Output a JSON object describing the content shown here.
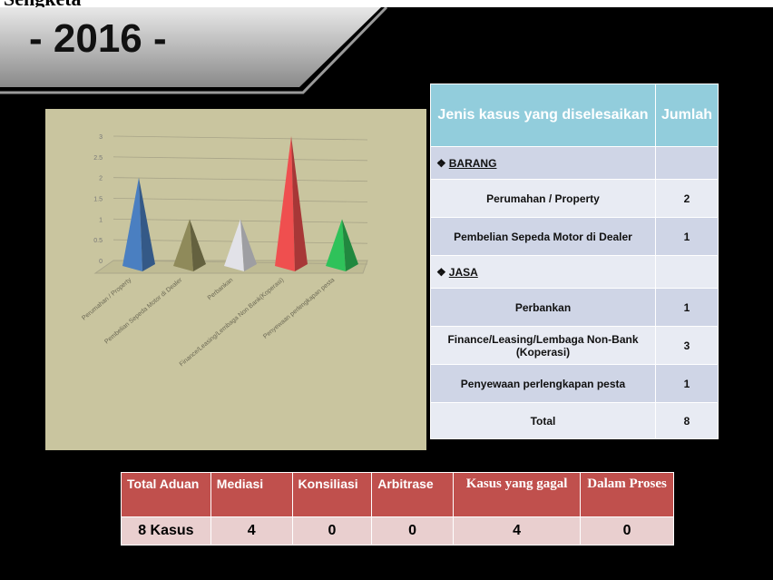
{
  "header": {
    "caption": "Sengketa",
    "year": "- 2016 -"
  },
  "chart_data": {
    "type": "pyramid",
    "categories": [
      "Perumahan / Property",
      "Pembelian Sepeda Motor di Dealer",
      "Perbankan",
      "Finance/Leasing/Lembaga Non Bank(Koperasi)",
      "Penyewaan perlengkapan pesta"
    ],
    "values": [
      2,
      1,
      1,
      3,
      1
    ],
    "colors": [
      "#4a7fc1",
      "#8f8a5a",
      "#e2e2e8",
      "#ef4f4f",
      "#2fc25a"
    ],
    "ylim": [
      0,
      3
    ],
    "yticks": [
      0,
      0.5,
      1,
      1.5,
      2,
      2.5,
      3
    ],
    "grid": true
  },
  "table": {
    "columns": [
      "Jenis kasus yang diselesaikan",
      "Jumlah"
    ],
    "sections": [
      {
        "name": "BARANG",
        "rows": [
          [
            "Perumahan / Property",
            2
          ],
          [
            "Pembelian Sepeda Motor di Dealer",
            1
          ]
        ]
      },
      {
        "name": "JASA",
        "rows": [
          [
            "Perbankan",
            1
          ],
          [
            "Finance/Leasing/Lembaga Non-Bank (Koperasi)",
            3
          ],
          [
            "Penyewaan perlengkapan pesta",
            1
          ]
        ]
      }
    ],
    "total": [
      "Total",
      8
    ]
  },
  "summary": {
    "columns": [
      "Total Aduan",
      "Mediasi",
      "Konsiliasi",
      "Arbitrase",
      "Kasus yang gagal",
      "Dalam Proses"
    ],
    "values": [
      "8 Kasus",
      4,
      0,
      0,
      4,
      0
    ]
  }
}
